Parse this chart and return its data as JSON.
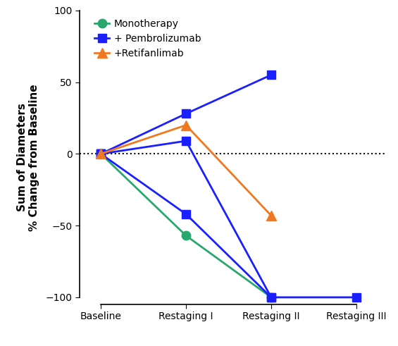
{
  "title": "",
  "ylabel": "Sum of Diameters\n% Change from Baseline",
  "xtick_labels": [
    "Baseline",
    "Restaging I",
    "Restaging II",
    "Restaging III"
  ],
  "ylim": [
    -105,
    100
  ],
  "yticks": [
    -100,
    -50,
    0,
    50,
    100
  ],
  "background_color": "#ffffff",
  "monotherapy": {
    "x": [
      0,
      1,
      2
    ],
    "y": [
      0,
      -57,
      -100
    ],
    "color": "#29a86e",
    "marker": "o",
    "linewidth": 2.0,
    "markersize": 9,
    "label": "Monotherapy"
  },
  "pembrolizumab": [
    {
      "x": [
        0,
        1,
        2
      ],
      "y": [
        0,
        28,
        55
      ],
      "color": "#1a1fff",
      "marker": "s",
      "linewidth": 2.0,
      "markersize": 9
    },
    {
      "x": [
        0,
        1,
        2,
        3
      ],
      "y": [
        0,
        9,
        -100,
        -100
      ],
      "color": "#1a1fff",
      "marker": "s",
      "linewidth": 2.0,
      "markersize": 9
    },
    {
      "x": [
        0,
        1,
        2
      ],
      "y": [
        0,
        -42,
        -100
      ],
      "color": "#1a1fff",
      "marker": "s",
      "linewidth": 2.0,
      "markersize": 9
    }
  ],
  "retifanlimab": {
    "x": [
      0,
      1,
      2
    ],
    "y": [
      0,
      20,
      -43
    ],
    "color": "#f07820",
    "marker": "^",
    "linewidth": 2.0,
    "markersize": 10,
    "label": "+Retifanlimab"
  },
  "legend_labels": [
    "Monotherapy",
    "+ Pembrolizumab",
    "+Retifanlimab"
  ],
  "legend_colors": [
    "#29a86e",
    "#1a1fff",
    "#f07820"
  ],
  "legend_markers": [
    "o",
    "s",
    "^"
  ],
  "legend_markersizes": [
    9,
    9,
    10
  ]
}
